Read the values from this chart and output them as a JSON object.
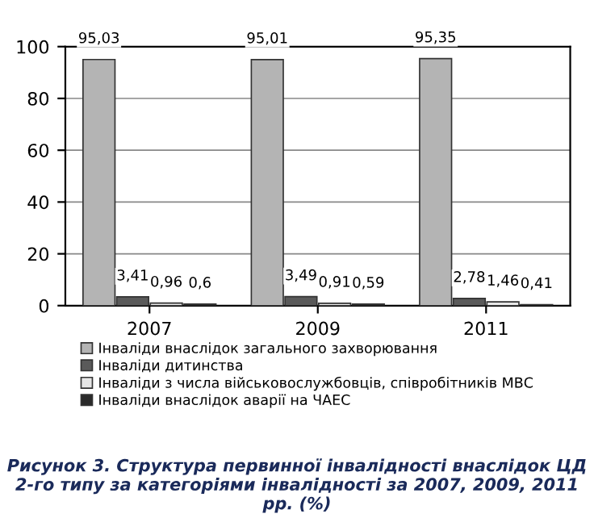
{
  "chart_data": {
    "type": "bar",
    "title": "Рисунок 3. Структура первинної інвалідності внаслідок ЦД 2-го типу за категоріями інвалідності за 2007, 2009, 2011 рр. (%)",
    "categories": [
      "2007",
      "2009",
      "2011"
    ],
    "series": [
      {
        "name": "Інваліди внаслідок загального захворювання",
        "color": "#b4b4b4",
        "values": [
          95.03,
          95.01,
          95.35
        ],
        "value_labels": [
          "95,03",
          "95,01",
          "95,35"
        ]
      },
      {
        "name": "Інваліди дитинства",
        "color": "#5a5a5a",
        "values": [
          3.41,
          3.49,
          2.78
        ],
        "value_labels": [
          "3,41",
          "3,49",
          "2,78"
        ]
      },
      {
        "name": "Інваліди з числа військовослужбовців, співробітників МВС",
        "color": "#e6e6e6",
        "values": [
          0.96,
          0.91,
          1.46
        ],
        "value_labels": [
          "0,96",
          "0,91",
          "1,46"
        ]
      },
      {
        "name": "Інваліди внаслідок аварії на ЧАЕС",
        "color": "#2a2a2a",
        "values": [
          0.6,
          0.59,
          0.41
        ],
        "value_labels": [
          "0,6",
          "0,59",
          "0,41"
        ]
      }
    ],
    "ylim": [
      0,
      100
    ],
    "yticks": [
      0,
      20,
      40,
      60,
      80,
      100
    ],
    "grid": "y",
    "legend": "bottom"
  }
}
